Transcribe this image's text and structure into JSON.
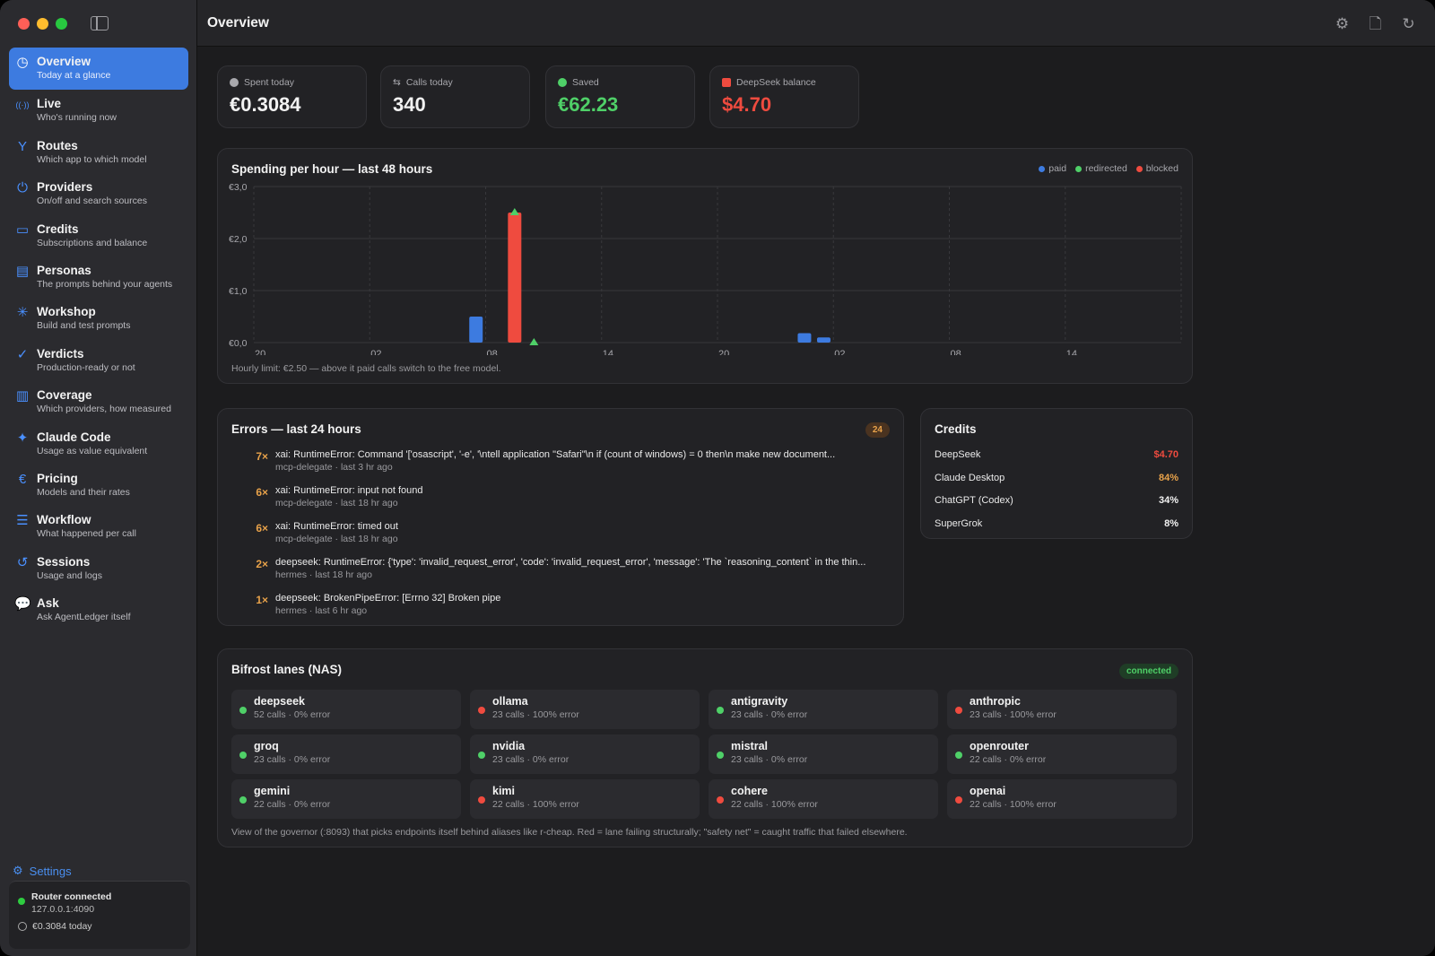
{
  "header": {
    "title": "Overview"
  },
  "sidebar": {
    "items": [
      {
        "label": "Overview",
        "sub": "Today at a glance",
        "icon": "clock-icon",
        "glyph": "◷",
        "active": true
      },
      {
        "label": "Live",
        "sub": "Who's running now",
        "icon": "broadcast-icon",
        "glyph": "((·))",
        "active": false
      },
      {
        "label": "Routes",
        "sub": "Which app to which model",
        "icon": "fork-icon",
        "glyph": "Y",
        "active": false
      },
      {
        "label": "Providers",
        "sub": "On/off and search sources",
        "icon": "power-icon",
        "glyph": "⏻",
        "active": false
      },
      {
        "label": "Credits",
        "sub": "Subscriptions and balance",
        "icon": "credit-card-icon",
        "glyph": "▭",
        "active": false
      },
      {
        "label": "Personas",
        "sub": "The prompts behind your agents",
        "icon": "person-card-icon",
        "glyph": "▤",
        "active": false
      },
      {
        "label": "Workshop",
        "sub": "Build and test prompts",
        "icon": "sparkle-icon",
        "glyph": "✳",
        "active": false
      },
      {
        "label": "Verdicts",
        "sub": "Production-ready or not",
        "icon": "checkmark-seal-icon",
        "glyph": "✓",
        "active": false
      },
      {
        "label": "Coverage",
        "sub": "Which providers, how measured",
        "icon": "document-icon",
        "glyph": "▥",
        "active": false
      },
      {
        "label": "Claude Code",
        "sub": "Usage as value equivalent",
        "icon": "sparkles-icon",
        "glyph": "✦",
        "active": false
      },
      {
        "label": "Pricing",
        "sub": "Models and their rates",
        "icon": "currency-icon",
        "glyph": "€",
        "active": false
      },
      {
        "label": "Workflow",
        "sub": "What happened per call",
        "icon": "list-icon",
        "glyph": "☰",
        "active": false
      },
      {
        "label": "Sessions",
        "sub": "Usage and logs",
        "icon": "history-icon",
        "glyph": "↺",
        "active": false
      },
      {
        "label": "Ask",
        "sub": "Ask AgentLedger itself",
        "icon": "chat-bubble-icon",
        "glyph": "💬",
        "active": false
      }
    ],
    "settings_label": "Settings",
    "status": {
      "title": "Router connected",
      "address": "127.0.0.1:4090",
      "today": "€0.3084 today"
    }
  },
  "stats": [
    {
      "label": "Spent today",
      "value": "€0.3084",
      "icon": "clock-icon",
      "color": "#f2f2f2"
    },
    {
      "label": "Calls today",
      "value": "340",
      "icon": "arrows-icon",
      "color": "#f2f2f2"
    },
    {
      "label": "Saved",
      "value": "€62.23",
      "icon": "check-circle-icon",
      "color": "#4fd068"
    },
    {
      "label": "DeepSeek balance",
      "value": "$4.70",
      "icon": "card-icon",
      "color": "#ef4b3f"
    }
  ],
  "chart": {
    "title": "Spending per hour — last 48 hours",
    "note": "Hourly limit: €2.50 — above it paid calls switch to the free model.",
    "legend": [
      {
        "name": "paid",
        "color": "#3d7be0"
      },
      {
        "name": "redirected",
        "color": "#4fd068"
      },
      {
        "name": "blocked",
        "color": "#ef4b3f"
      }
    ]
  },
  "chart_data": {
    "type": "bar",
    "title": "Spending per hour — last 48 hours",
    "ylim": [
      0,
      3.0
    ],
    "yticks": [
      "€0,0",
      "€1,0",
      "€2,0",
      "€3,0"
    ],
    "xticks": [
      "20",
      "02",
      "08",
      "14",
      "20",
      "02",
      "08",
      "14"
    ],
    "hours": 48,
    "series": [
      {
        "name": "paid",
        "color": "#3d7be0",
        "points": [
          {
            "hour": 11.5,
            "value": 0.5
          },
          {
            "hour": 28.5,
            "value": 0.18
          },
          {
            "hour": 29.5,
            "value": 0.1
          }
        ]
      },
      {
        "name": "blocked",
        "color": "#ef4b3f",
        "points": [
          {
            "hour": 13.5,
            "value": 2.5
          }
        ]
      },
      {
        "name": "redirected",
        "color": "#4fd068",
        "markers": [
          {
            "hour": 13.5,
            "value": 2.5
          },
          {
            "hour": 14.5,
            "value": 0.0
          }
        ]
      }
    ]
  },
  "errors": {
    "title": "Errors — last 24 hours",
    "count": "24",
    "items": [
      {
        "count": "7×",
        "message": "xai: RuntimeError: Command '['osascript', '-e', '\\ntell application \"Safari\"\\n    if (count of windows) = 0 then\\n        make new document...",
        "meta": "mcp-delegate · last 3 hr ago"
      },
      {
        "count": "6×",
        "message": "xai: RuntimeError: input not found",
        "meta": "mcp-delegate · last 18 hr ago"
      },
      {
        "count": "6×",
        "message": "xai: RuntimeError: timed out",
        "meta": "mcp-delegate · last 18 hr ago"
      },
      {
        "count": "2×",
        "message": "deepseek: RuntimeError: {'type': 'invalid_request_error', 'code': 'invalid_request_error', 'message': 'The `reasoning_content` in the thin...",
        "meta": "hermes · last 18 hr ago"
      },
      {
        "count": "1×",
        "message": "deepseek: BrokenPipeError: [Errno 32] Broken pipe",
        "meta": "hermes · last 6 hr ago"
      }
    ]
  },
  "credits": {
    "title": "Credits",
    "items": [
      {
        "name": "DeepSeek",
        "value": "$4.70",
        "color": "#ef4b3f"
      },
      {
        "name": "Claude Desktop",
        "value": "84%",
        "color": "#e8a24a"
      },
      {
        "name": "ChatGPT (Codex)",
        "value": "34%",
        "color": "#f2f2f2"
      },
      {
        "name": "SuperGrok",
        "value": "8%",
        "color": "#f2f2f2"
      }
    ]
  },
  "lanes": {
    "title": "Bifrost lanes (NAS)",
    "status": "connected",
    "note": "View of the governor (:8093) that picks endpoints itself behind aliases like r-cheap. Red = lane failing structurally; \"safety net\" = caught traffic that failed elsewhere.",
    "items": [
      {
        "name": "deepseek",
        "stats": "52 calls · 0% error",
        "ok": true
      },
      {
        "name": "ollama",
        "stats": "23 calls · 100% error",
        "ok": false
      },
      {
        "name": "antigravity",
        "stats": "23 calls · 0% error",
        "ok": true
      },
      {
        "name": "anthropic",
        "stats": "23 calls · 100% error",
        "ok": false
      },
      {
        "name": "groq",
        "stats": "23 calls · 0% error",
        "ok": true
      },
      {
        "name": "nvidia",
        "stats": "23 calls · 0% error",
        "ok": true
      },
      {
        "name": "mistral",
        "stats": "23 calls · 0% error",
        "ok": true
      },
      {
        "name": "openrouter",
        "stats": "22 calls · 0% error",
        "ok": true
      },
      {
        "name": "gemini",
        "stats": "22 calls · 0% error",
        "ok": true
      },
      {
        "name": "kimi",
        "stats": "22 calls · 100% error",
        "ok": false
      },
      {
        "name": "cohere",
        "stats": "22 calls · 100% error",
        "ok": false
      },
      {
        "name": "openai",
        "stats": "22 calls · 100% error",
        "ok": false
      }
    ]
  }
}
